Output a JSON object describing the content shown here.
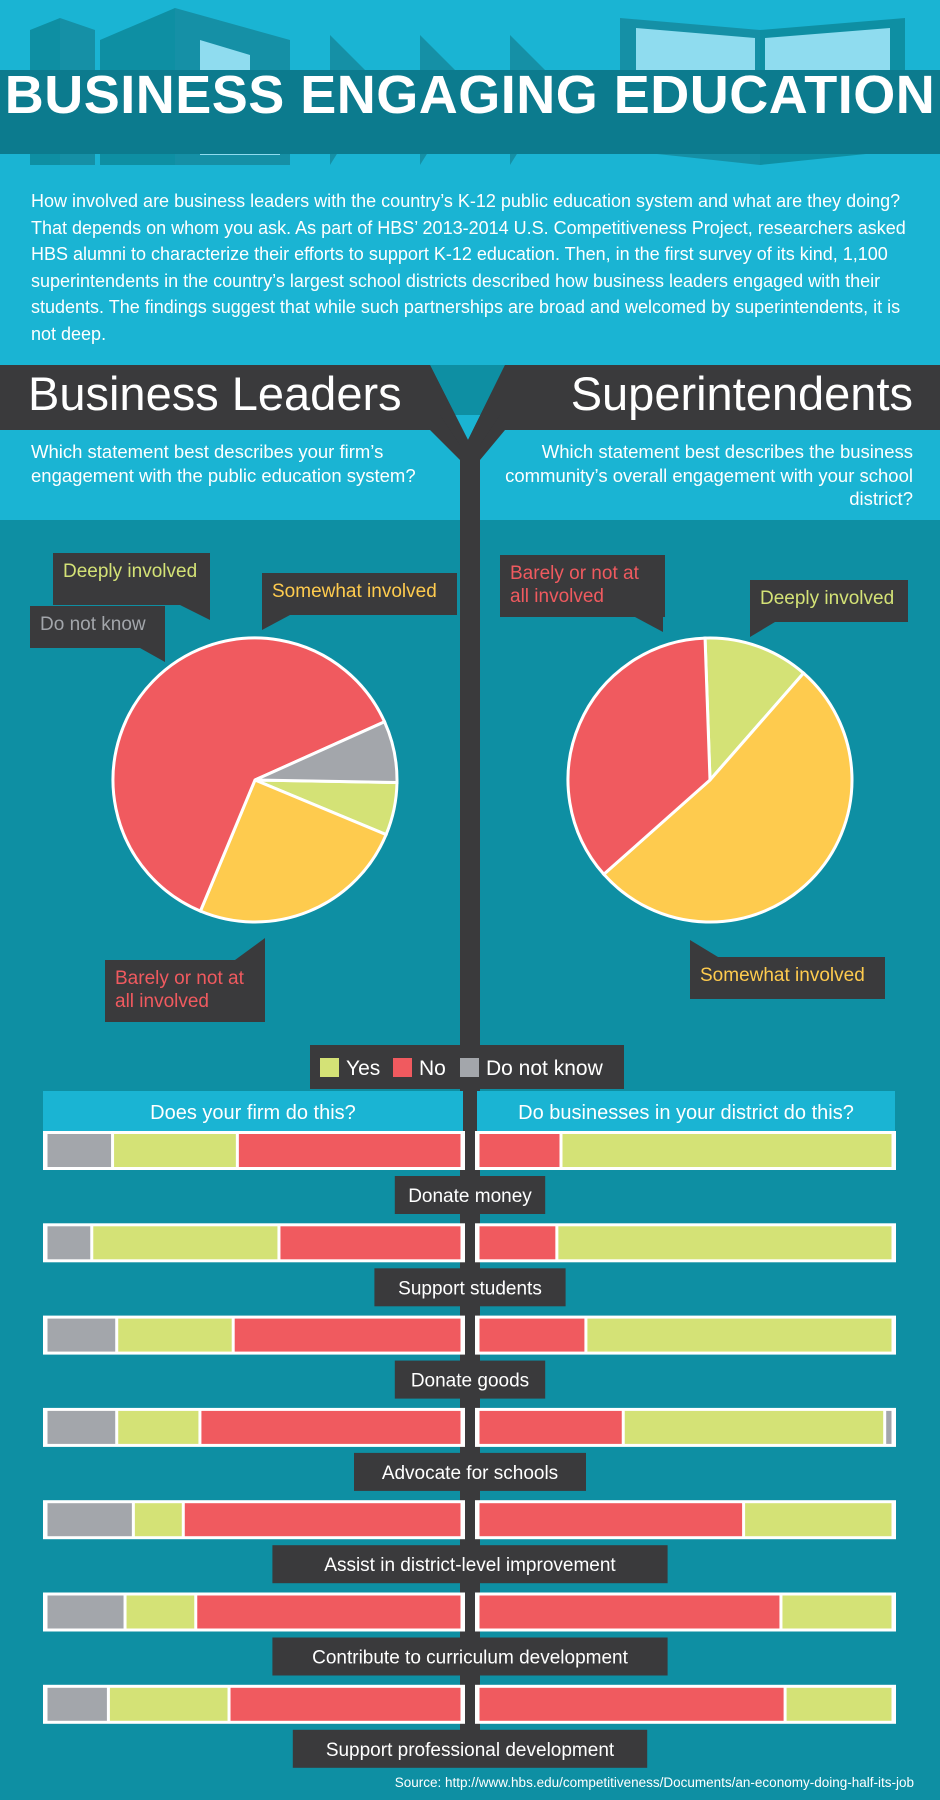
{
  "title": "BUSINESS ENGAGING EDUCATION",
  "intro": "How involved are business leaders with the country’s K-12 public education system and what are they doing? That depends on whom you ask. As part of HBS’ 2013-2014 U.S. Competitiveness Project, researchers asked HBS alumni to characterize their efforts to support K-12 education. Then, in the first survey of its kind, 1,100 superintendents in the country’s largest school districts described how business leaders engaged with their students. The findings suggest that while such partnerships are broad and welcomed by superintendents, it is not deep.",
  "sections": {
    "left": {
      "heading": "Business Leaders",
      "question": "Which statement best describes your firm’s engagement with the public education system?"
    },
    "right": {
      "heading": "Superintendents",
      "question": "Which statement best describes the business community’s overall engagement with your school district?"
    }
  },
  "colors": {
    "yes": "#d4e276",
    "no": "#f05a5f",
    "dk": "#a3a6ab",
    "somewhat": "#fecb4e",
    "deeply": "#d4e276",
    "barely": "#f05a5f",
    "dark": "#3a3a3c",
    "yes_text": "#d4e276",
    "no_text": "#f05a5f",
    "dk_text": "#a3a6ab",
    "somewhat_text": "#fecb4e"
  },
  "bars": {
    "left_heading": "Does your firm do this?",
    "right_heading": "Do businesses in your district do this?"
  },
  "source": "Source: http://www.hbs.edu/competitiveness/Documents/an-economy-doing-half-its-job",
  "chart_data": [
    {
      "type": "pie",
      "name": "Business Leaders",
      "slices": [
        {
          "label": "Deeply involved",
          "value": 6,
          "color": "#d4e276",
          "text_color": "#d4e276"
        },
        {
          "label": "Somewhat involved",
          "value": 25,
          "color": "#fecb4e",
          "text_color": "#fecb4e"
        },
        {
          "label": "Barely or not at all involved",
          "value": 62,
          "color": "#f05a5f",
          "text_color": "#f05a5f"
        },
        {
          "label": "Do not know",
          "value": 7,
          "color": "#a3a6ab",
          "text_color": "#a3a6ab"
        }
      ]
    },
    {
      "type": "pie",
      "name": "Superintendents",
      "slices": [
        {
          "label": "Deeply involved",
          "value": 12,
          "color": "#d4e276",
          "text_color": "#d4e276"
        },
        {
          "label": "Somewhat involved",
          "value": 52,
          "color": "#fecb4e",
          "text_color": "#fecb4e"
        },
        {
          "label": "Barely or not at all involved",
          "value": 36,
          "color": "#f05a5f",
          "text_color": "#f05a5f"
        }
      ]
    },
    {
      "type": "bar",
      "stacked": true,
      "legend": [
        "Yes",
        "No",
        "Do not know"
      ],
      "categories": [
        "Donate money",
        "Support students",
        "Donate goods",
        "Advocate for schools",
        "Assist in district-level improvement",
        "Contribute to curriculum development",
        "Support professional development"
      ],
      "series_left": {
        "title": "Does your firm do this?",
        "dk": [
          16,
          11,
          17,
          17,
          21,
          19,
          15
        ],
        "yes": [
          30,
          45,
          28,
          20,
          12,
          17,
          29
        ],
        "no": [
          54,
          44,
          55,
          63,
          67,
          64,
          56
        ]
      },
      "series_right": {
        "title": "Do businesses in your district do this?",
        "no": [
          20,
          19,
          26,
          35,
          64,
          73,
          74
        ],
        "yes": [
          80,
          81,
          74,
          63,
          36,
          27,
          26
        ],
        "dk": [
          0,
          0,
          0,
          2,
          0,
          0,
          0
        ]
      }
    }
  ]
}
